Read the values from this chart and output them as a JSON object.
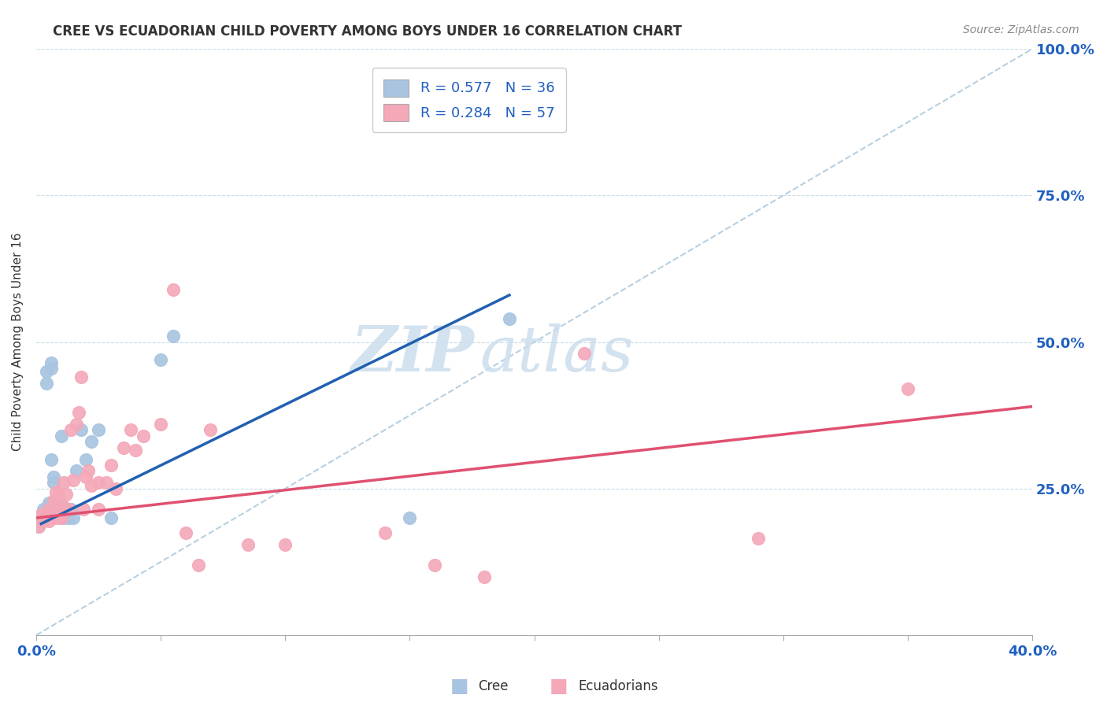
{
  "title": "CREE VS ECUADORIAN CHILD POVERTY AMONG BOYS UNDER 16 CORRELATION CHART",
  "source": "Source: ZipAtlas.com",
  "ylabel": "Child Poverty Among Boys Under 16",
  "xlim": [
    0.0,
    0.4
  ],
  "ylim": [
    0.0,
    1.0
  ],
  "xticks": [
    0.0,
    0.05,
    0.1,
    0.15,
    0.2,
    0.25,
    0.3,
    0.35,
    0.4
  ],
  "yticks": [
    0.0,
    0.25,
    0.5,
    0.75,
    1.0
  ],
  "cree_R": 0.577,
  "cree_N": 36,
  "ecu_R": 0.284,
  "ecu_N": 57,
  "cree_color": "#a8c4e0",
  "ecu_color": "#f4a8b8",
  "cree_line_color": "#2060b0",
  "ecu_line_color": "#e05070",
  "ref_line_color": "#b8d0e0",
  "watermark_zip": "ZIP",
  "watermark_atlas": "atlas",
  "cree_x": [
    0.001,
    0.002,
    0.003,
    0.003,
    0.004,
    0.004,
    0.005,
    0.005,
    0.005,
    0.006,
    0.006,
    0.006,
    0.007,
    0.007,
    0.007,
    0.008,
    0.008,
    0.009,
    0.009,
    0.01,
    0.01,
    0.011,
    0.012,
    0.013,
    0.014,
    0.015,
    0.016,
    0.018,
    0.02,
    0.022,
    0.025,
    0.03,
    0.05,
    0.055,
    0.15,
    0.19
  ],
  "cree_y": [
    0.185,
    0.2,
    0.205,
    0.215,
    0.43,
    0.45,
    0.215,
    0.225,
    0.22,
    0.455,
    0.465,
    0.3,
    0.26,
    0.27,
    0.215,
    0.215,
    0.215,
    0.215,
    0.22,
    0.22,
    0.34,
    0.2,
    0.215,
    0.2,
    0.215,
    0.2,
    0.28,
    0.35,
    0.3,
    0.33,
    0.35,
    0.2,
    0.47,
    0.51,
    0.2,
    0.54
  ],
  "ecu_x": [
    0.001,
    0.002,
    0.002,
    0.003,
    0.003,
    0.004,
    0.004,
    0.005,
    0.005,
    0.006,
    0.006,
    0.007,
    0.007,
    0.007,
    0.008,
    0.008,
    0.009,
    0.009,
    0.009,
    0.01,
    0.01,
    0.01,
    0.011,
    0.011,
    0.012,
    0.013,
    0.014,
    0.015,
    0.016,
    0.017,
    0.018,
    0.019,
    0.02,
    0.021,
    0.022,
    0.025,
    0.025,
    0.028,
    0.03,
    0.032,
    0.035,
    0.038,
    0.04,
    0.043,
    0.05,
    0.055,
    0.06,
    0.065,
    0.07,
    0.085,
    0.1,
    0.14,
    0.16,
    0.18,
    0.22,
    0.29,
    0.35
  ],
  "ecu_y": [
    0.185,
    0.195,
    0.205,
    0.195,
    0.2,
    0.2,
    0.21,
    0.195,
    0.215,
    0.2,
    0.215,
    0.2,
    0.215,
    0.23,
    0.215,
    0.245,
    0.2,
    0.215,
    0.24,
    0.2,
    0.21,
    0.225,
    0.215,
    0.26,
    0.24,
    0.215,
    0.35,
    0.265,
    0.36,
    0.38,
    0.44,
    0.215,
    0.27,
    0.28,
    0.255,
    0.215,
    0.26,
    0.26,
    0.29,
    0.25,
    0.32,
    0.35,
    0.315,
    0.34,
    0.36,
    0.59,
    0.175,
    0.12,
    0.35,
    0.155,
    0.155,
    0.175,
    0.12,
    0.1,
    0.48,
    0.165,
    0.42
  ],
  "cree_line_x": [
    0.002,
    0.19
  ],
  "cree_line_y": [
    0.19,
    0.58
  ],
  "ecu_line_x": [
    0.0,
    0.4
  ],
  "ecu_line_y": [
    0.2,
    0.39
  ],
  "ref_line_x": [
    0.0,
    0.4
  ],
  "ref_line_y": [
    0.0,
    1.0
  ]
}
